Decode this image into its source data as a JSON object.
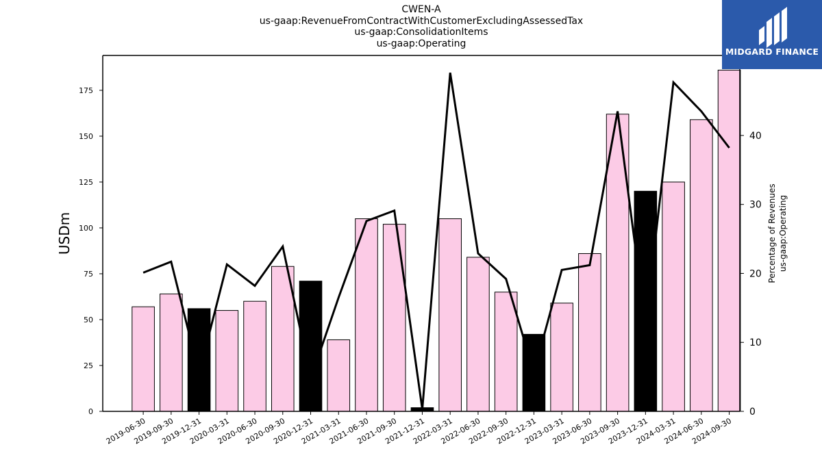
{
  "title_lines": [
    "CWEN-A",
    "us-gaap:RevenueFromContractWithCustomerExcludingAssessedTax",
    "us-gaap:ConsolidationItems",
    "us-gaap:Operating"
  ],
  "logo": {
    "text": "MIDGARD FINANCE",
    "bg_color": "#2b5aab"
  },
  "chart_data": {
    "type": "bar",
    "categories": [
      "2019-06-30",
      "2019-09-30",
      "2019-12-31",
      "2020-03-31",
      "2020-06-30",
      "2020-09-30",
      "2020-12-31",
      "2021-03-31",
      "2021-06-30",
      "2021-09-30",
      "2021-12-31",
      "2022-03-31",
      "2022-06-30",
      "2022-09-30",
      "2022-12-31",
      "2023-03-31",
      "2023-06-30",
      "2023-09-30",
      "2023-12-31",
      "2024-03-31",
      "2024-06-30",
      "2024-09-30"
    ],
    "bars": {
      "values": [
        57,
        64,
        56,
        55,
        60,
        79,
        71,
        39,
        105,
        102,
        2,
        105,
        84,
        65,
        42,
        59,
        86,
        162,
        120,
        125,
        159,
        186
      ],
      "highlight": [
        false,
        false,
        true,
        false,
        false,
        false,
        true,
        false,
        false,
        false,
        true,
        false,
        false,
        false,
        true,
        false,
        false,
        false,
        true,
        false,
        false,
        false
      ],
      "color": "#fccbe6",
      "highlight_color": "#000000"
    },
    "line": {
      "values": [
        20.1,
        21.7,
        5.5,
        21.3,
        18.2,
        23.9,
        4.7,
        16.5,
        27.6,
        29.1,
        0.3,
        49.1,
        22.9,
        19.2,
        5.6,
        20.5,
        21.2,
        43.5,
        12.5,
        47.7,
        43.5,
        38.2
      ],
      "color": "#000000"
    },
    "ylabel": "USDm",
    "ylim": [
      0,
      194
    ],
    "yticks": [
      0,
      25,
      50,
      75,
      100,
      125,
      150,
      175
    ],
    "y2label_lines": [
      "Percentage of Revenues",
      "us-gaap:Operating"
    ],
    "y2lim": [
      0,
      51.6
    ],
    "y2ticks": [
      0,
      10,
      20,
      30,
      40
    ]
  }
}
